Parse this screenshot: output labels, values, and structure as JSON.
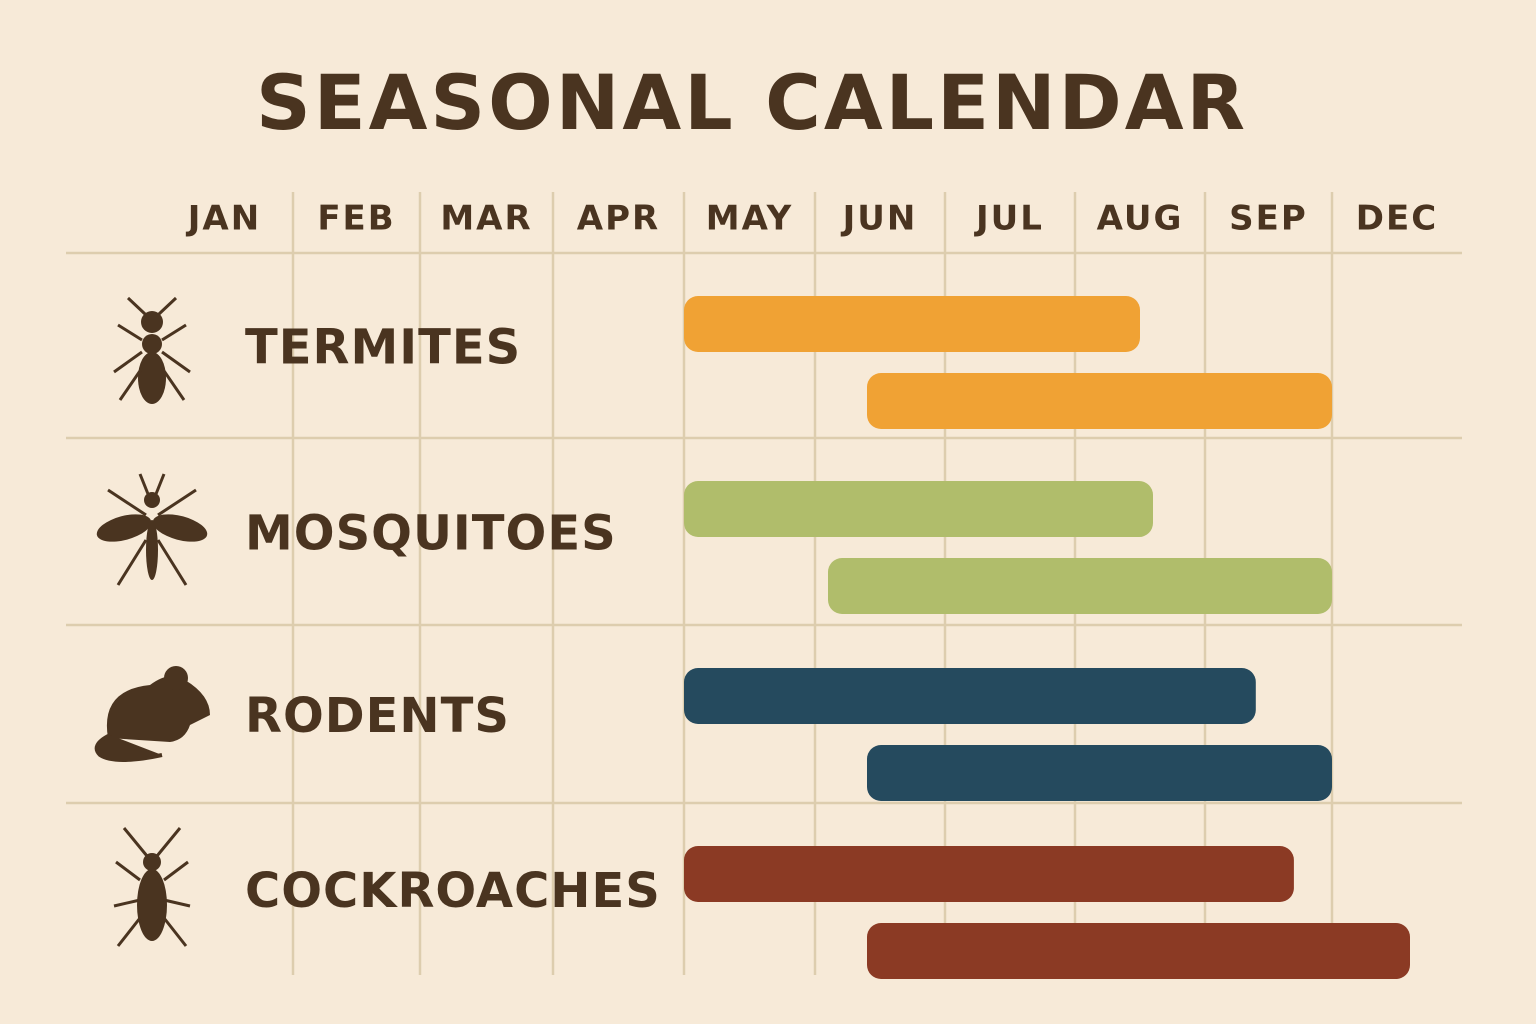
{
  "chart_data": {
    "type": "gantt",
    "title": "SEASONAL CALENDAR",
    "categories": [
      "JAN",
      "FEB",
      "MAR",
      "APR",
      "MAY",
      "JUN",
      "JUL",
      "AUG",
      "SEP",
      "DEC"
    ],
    "series": [
      {
        "name": "TERMITES",
        "color": "#f0a234",
        "starts": [
          4,
          5.4
        ],
        "ends": [
          7.5,
          9
        ]
      },
      {
        "name": "MOSQUITOES",
        "color": "#b0bd6b",
        "starts": [
          4,
          5.1
        ],
        "ends": [
          7.6,
          9
        ]
      },
      {
        "name": "RODENTS",
        "color": "#254a5e",
        "starts": [
          4,
          5.4
        ],
        "ends": [
          8.4,
          9
        ]
      },
      {
        "name": "COCKROACHES",
        "color": "#8b3a24",
        "starts": [
          4,
          5.4
        ],
        "ends": [
          8.7,
          9.6
        ]
      }
    ]
  }
}
